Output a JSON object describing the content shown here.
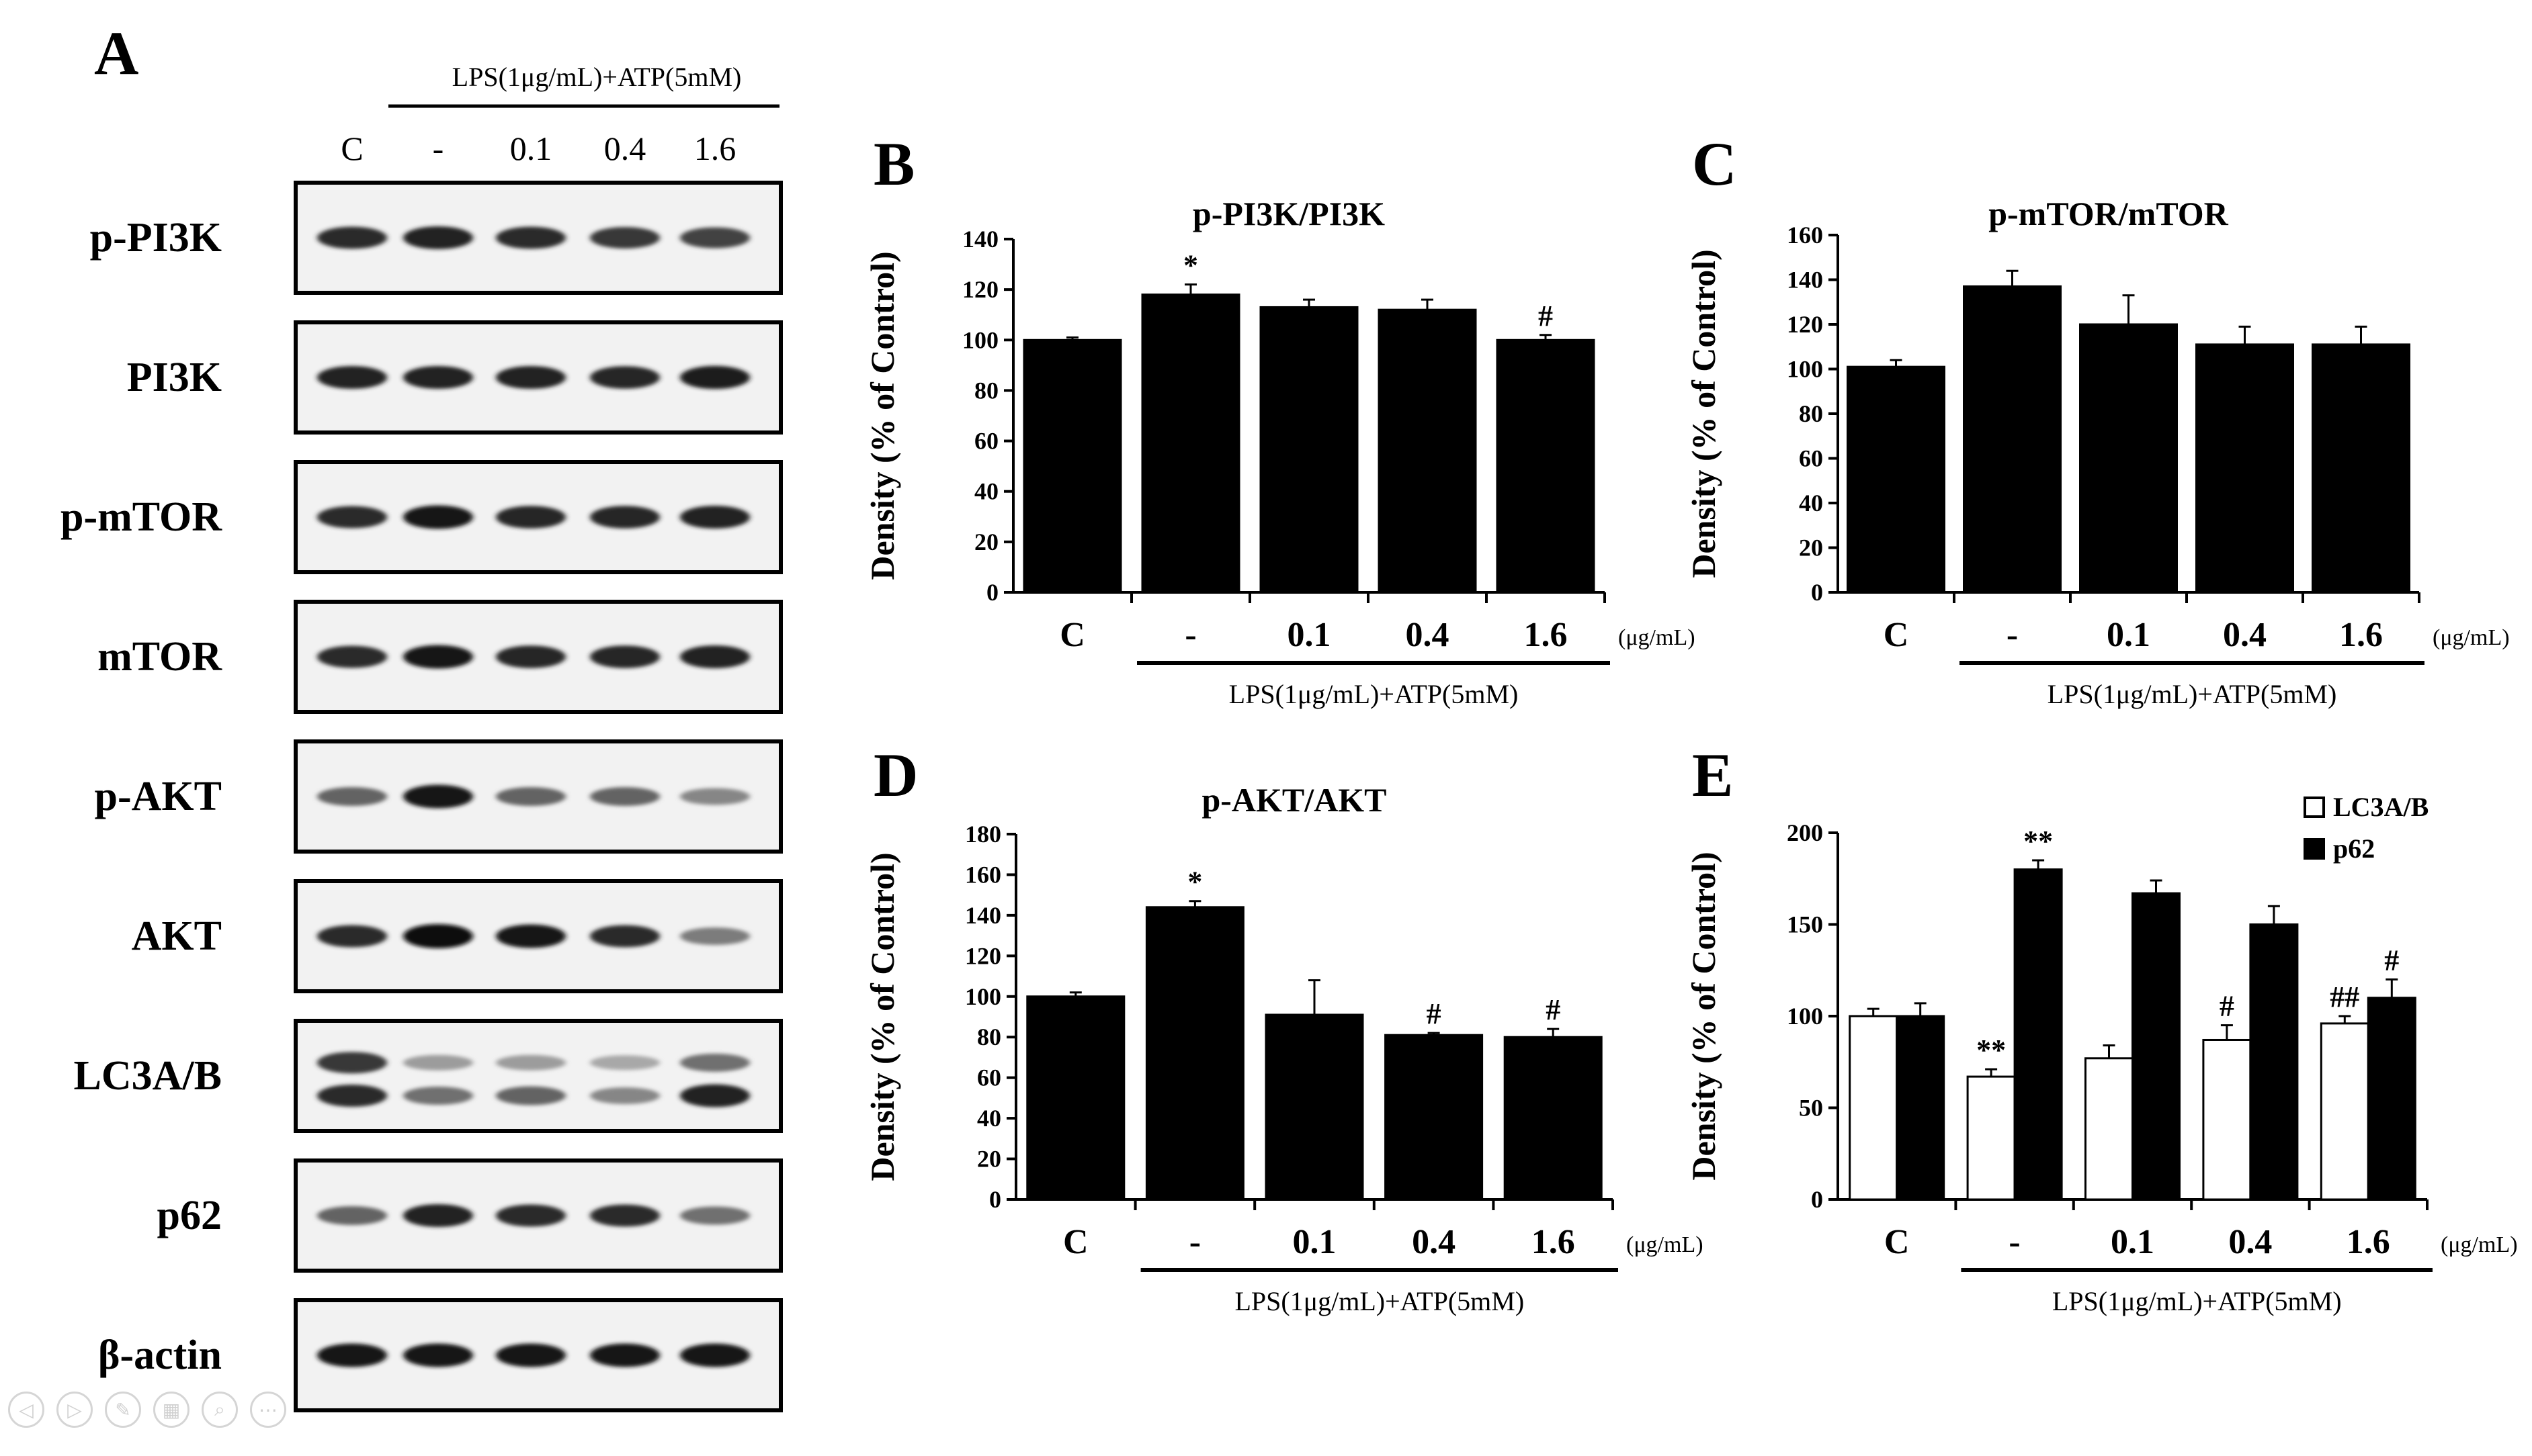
{
  "figure": {
    "panel_labels": [
      "A",
      "B",
      "C",
      "D",
      "E"
    ],
    "treatment_label": "LPS(1μg/mL)+ATP(5mM)",
    "unit_label": "(μg/mL)",
    "lanes": [
      "C",
      "-",
      "0.1",
      "0.4",
      "1.6"
    ]
  },
  "blot": {
    "proteins": [
      {
        "name": "p-PI3K",
        "band_intensity": [
          0.85,
          0.9,
          0.85,
          0.8,
          0.75
        ]
      },
      {
        "name": "PI3K",
        "band_intensity": [
          0.9,
          0.9,
          0.9,
          0.88,
          0.92
        ]
      },
      {
        "name": "p-mTOR",
        "band_intensity": [
          0.85,
          0.95,
          0.88,
          0.88,
          0.9
        ]
      },
      {
        "name": "mTOR",
        "band_intensity": [
          0.85,
          0.95,
          0.88,
          0.88,
          0.9
        ]
      },
      {
        "name": "p-AKT",
        "band_intensity": [
          0.6,
          0.95,
          0.6,
          0.6,
          0.45
        ]
      },
      {
        "name": "AKT",
        "band_intensity": [
          0.85,
          1.0,
          0.95,
          0.85,
          0.5
        ]
      },
      {
        "name": "LC3A/B",
        "band_intensity": [
          0.85,
          0.55,
          0.6,
          0.45,
          0.9
        ]
      },
      {
        "name": "p62",
        "band_intensity": [
          0.6,
          0.9,
          0.85,
          0.85,
          0.55
        ]
      },
      {
        "name": "β-actin",
        "band_intensity": [
          0.95,
          0.95,
          0.95,
          0.95,
          0.95
        ]
      }
    ]
  },
  "chart_data": [
    {
      "panel": "B",
      "type": "bar",
      "title": "p-PI3K/PI3K",
      "ylabel": "Density (% of Control)",
      "ylim": [
        0,
        140
      ],
      "yticks": [
        "0",
        "20",
        "40",
        "60",
        "80",
        "100",
        "120",
        "140"
      ],
      "categories": [
        "C",
        "-",
        "0.1",
        "0.4",
        "1.6"
      ],
      "series": [
        {
          "values": [
            100,
            118,
            113,
            112,
            100
          ],
          "errors": [
            1,
            4,
            3,
            4,
            2
          ],
          "color": "#000000"
        }
      ],
      "significance": [
        "",
        "*",
        "",
        "",
        "#"
      ]
    },
    {
      "panel": "C",
      "type": "bar",
      "title": "p-mTOR/mTOR",
      "ylabel": "Density (% of Control)",
      "ylim": [
        0,
        160
      ],
      "yticks": [
        "0",
        "20",
        "40",
        "60",
        "80",
        "100",
        "120",
        "140",
        "160"
      ],
      "categories": [
        "C",
        "-",
        "0.1",
        "0.4",
        "1.6"
      ],
      "series": [
        {
          "values": [
            101,
            137,
            120,
            111,
            111
          ],
          "errors": [
            3,
            7,
            13,
            8,
            8
          ],
          "color": "#000000"
        }
      ],
      "significance": [
        "",
        "",
        "",
        "",
        ""
      ]
    },
    {
      "panel": "D",
      "type": "bar",
      "title": "p-AKT/AKT",
      "ylabel": "Density (% of Control)",
      "ylim": [
        0,
        180
      ],
      "yticks": [
        "0",
        "20",
        "40",
        "60",
        "80",
        "100",
        "120",
        "140",
        "160",
        "180"
      ],
      "categories": [
        "C",
        "-",
        "0.1",
        "0.4",
        "1.6"
      ],
      "series": [
        {
          "values": [
            100,
            144,
            91,
            81,
            80
          ],
          "errors": [
            2,
            3,
            17,
            1,
            4
          ],
          "color": "#000000"
        }
      ],
      "significance": [
        "",
        "*",
        "",
        "#",
        "#"
      ]
    },
    {
      "panel": "E",
      "type": "bar",
      "title": "",
      "ylabel": "Density (% of Control)",
      "ylim": [
        0,
        200
      ],
      "yticks": [
        "0",
        "50",
        "100",
        "150",
        "200"
      ],
      "categories": [
        "C",
        "-",
        "0.1",
        "0.4",
        "1.6"
      ],
      "legend_position": "top-right",
      "series": [
        {
          "name": "LC3A/B",
          "values": [
            100,
            67,
            77,
            87,
            96
          ],
          "errors": [
            4,
            4,
            7,
            8,
            4
          ],
          "color": "#ffffff",
          "significance": [
            "",
            "**",
            "",
            "#",
            "##"
          ]
        },
        {
          "name": "p62",
          "values": [
            100,
            180,
            167,
            150,
            110
          ],
          "errors": [
            7,
            5,
            7,
            10,
            10
          ],
          "color": "#000000",
          "significance": [
            "",
            "**",
            "",
            "",
            "#"
          ]
        }
      ]
    }
  ]
}
